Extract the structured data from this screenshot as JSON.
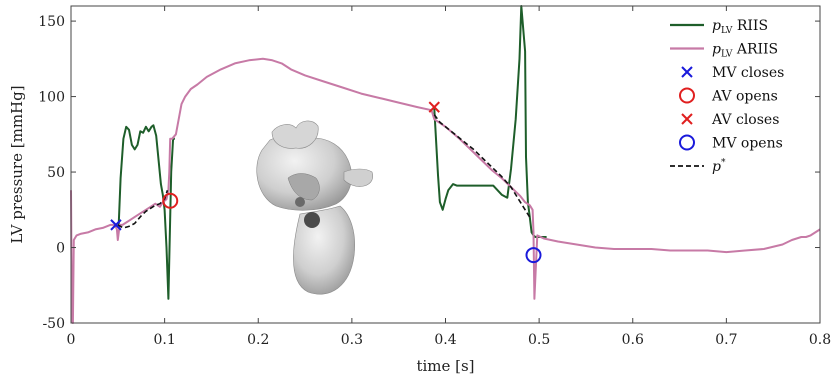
{
  "chart_data": {
    "type": "line",
    "xlabel": "time [s]",
    "ylabel": "LV pressure [mmHg]",
    "xlim": [
      0,
      0.8
    ],
    "ylim": [
      -50,
      160
    ],
    "xticks": [
      0,
      0.1,
      0.2,
      0.3,
      0.4,
      0.5,
      0.6,
      0.7,
      0.8
    ],
    "xtick_labels": [
      "0",
      "0.1",
      "0.2",
      "0.3",
      "0.4",
      "0.5",
      "0.6",
      "0.7",
      "0.8"
    ],
    "yticks": [
      -50,
      0,
      50,
      100,
      150
    ],
    "ytick_labels": [
      "-50",
      "0",
      "50",
      "100",
      "150"
    ],
    "grid": false,
    "legend_position": "top-right",
    "inset_image": "heart-geometry",
    "series": [
      {
        "name": "RIIS",
        "name_prefix": "p",
        "name_sub": "LV",
        "color": "#1e5e2a",
        "style": "solid",
        "x": [
          0.051,
          0.053,
          0.056,
          0.059,
          0.062,
          0.065,
          0.068,
          0.071,
          0.074,
          0.077,
          0.08,
          0.083,
          0.086,
          0.088,
          0.091,
          0.094,
          0.096,
          0.098,
          0.1,
          0.102,
          0.104,
          0.107,
          0.109,
          0.111,
          0.388,
          0.392,
          0.394,
          0.397,
          0.4,
          0.403,
          0.408,
          0.412,
          0.417,
          0.424,
          0.433,
          0.442,
          0.451,
          0.46,
          0.466,
          0.47,
          0.475,
          0.479,
          0.481,
          0.485,
          0.486,
          0.488,
          0.49,
          0.492,
          0.494,
          0.496,
          0.498,
          0.502,
          0.508
        ],
        "y": [
          15,
          46,
          72,
          80,
          78,
          68,
          65,
          68,
          77,
          76,
          80,
          77,
          80,
          81,
          74,
          55,
          42,
          35,
          25,
          0,
          -34,
          50,
          72,
          72,
          92,
          48,
          30,
          25,
          32,
          38,
          42,
          41,
          41,
          41,
          41,
          41,
          41,
          35,
          33,
          52,
          85,
          125,
          160,
          130,
          60,
          30,
          20,
          10,
          8,
          7,
          7,
          7,
          7
        ]
      },
      {
        "name": "ARIIS",
        "name_prefix": "p",
        "name_sub": "LV",
        "color": "#c77aa6",
        "style": "solid",
        "x": [
          0.0,
          0.001,
          0.002,
          0.003,
          0.006,
          0.01,
          0.018,
          0.026,
          0.034,
          0.042,
          0.047,
          0.049,
          0.05,
          0.052,
          0.055,
          0.06,
          0.065,
          0.07,
          0.075,
          0.08,
          0.085,
          0.09,
          0.095,
          0.098,
          0.1,
          0.102,
          0.104,
          0.105,
          0.106,
          0.108,
          0.112,
          0.118,
          0.122,
          0.128,
          0.135,
          0.145,
          0.16,
          0.175,
          0.19,
          0.205,
          0.215,
          0.225,
          0.235,
          0.25,
          0.27,
          0.29,
          0.31,
          0.33,
          0.35,
          0.37,
          0.385,
          0.388,
          0.4,
          0.415,
          0.43,
          0.45,
          0.46,
          0.47,
          0.48,
          0.485,
          0.49,
          0.493,
          0.494,
          0.495,
          0.498,
          0.505,
          0.52,
          0.54,
          0.56,
          0.58,
          0.6,
          0.62,
          0.64,
          0.66,
          0.68,
          0.7,
          0.72,
          0.74,
          0.76,
          0.77,
          0.78,
          0.785,
          0.79,
          0.8
        ],
        "y": [
          38,
          -48,
          -50,
          5,
          8,
          9,
          10,
          12,
          13,
          15,
          15,
          12,
          5,
          15,
          15,
          17,
          19,
          21,
          23,
          25,
          27,
          29,
          27,
          30,
          31,
          32,
          38,
          50,
          72,
          72,
          75,
          95,
          100,
          105,
          108,
          113,
          118,
          122,
          124,
          125,
          124,
          122,
          118,
          114,
          110,
          106,
          102,
          99,
          96,
          93,
          91,
          85,
          80,
          72,
          63,
          51,
          46,
          40,
          34,
          30,
          28,
          25,
          10,
          -34,
          8,
          6,
          4,
          2,
          0,
          -1,
          -1,
          -1,
          -2,
          -2,
          -2,
          -3,
          -2,
          -1,
          2,
          5,
          7,
          7,
          8,
          12
        ]
      },
      {
        "name": "p*",
        "name_prefix": "p",
        "name_sup": "*",
        "color": "#111111",
        "style": "dashed",
        "x": [
          0.05,
          0.056,
          0.062,
          0.068,
          0.075,
          0.08,
          0.085,
          0.09,
          0.095,
          0.1,
          0.103,
          0.388,
          0.394,
          0.4,
          0.41,
          0.42,
          0.43,
          0.44,
          0.45,
          0.46,
          0.47,
          0.48,
          0.49
        ],
        "y": [
          15,
          13,
          14,
          16,
          21,
          24,
          26,
          28,
          29,
          32,
          38,
          88,
          83,
          80,
          75,
          70,
          65,
          59,
          53,
          47,
          40,
          30,
          20
        ]
      }
    ],
    "events": [
      {
        "name": "MV closes",
        "marker": "x",
        "color": "#1a1adb",
        "x": 0.048,
        "y": 15
      },
      {
        "name": "AV opens",
        "marker": "circle",
        "color": "#e01f1f",
        "x": 0.106,
        "y": 31
      },
      {
        "name": "AV closes",
        "marker": "x",
        "color": "#e01f1f",
        "x": 0.388,
        "y": 93
      },
      {
        "name": "MV opens",
        "marker": "circle",
        "color": "#1a1adb",
        "x": 0.494,
        "y": -5
      }
    ]
  }
}
